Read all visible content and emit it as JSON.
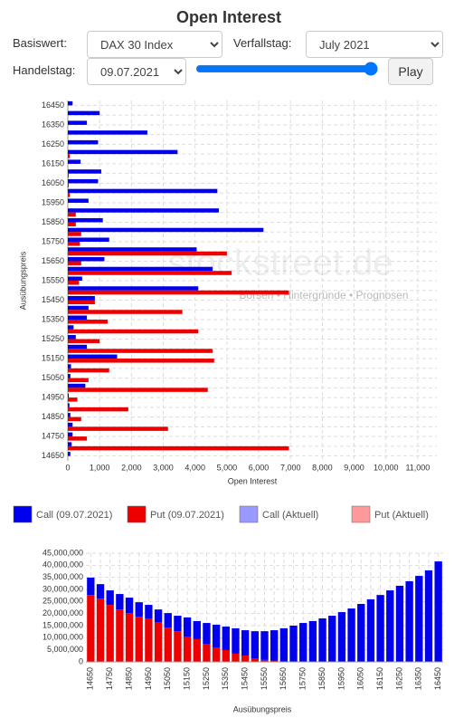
{
  "header": {
    "title": "Open Interest",
    "basiswert_label": "Basiswert:",
    "basiswert": "DAX 30 Index",
    "verfallstag_label": "Verfallstag:",
    "verfallstag": "July 2021",
    "handelstag_label": "Handelstag:",
    "handelstag": "09.07.2021",
    "play": "Play"
  },
  "chart_data": [
    {
      "type": "bar",
      "orientation": "horizontal",
      "xlabel": "Open Interest",
      "ylabel": "Ausübungspreis",
      "watermark": [
        "stockstreet.de",
        "Börsen • Hintergründe • Prognosen"
      ],
      "categories": [
        14650,
        null,
        14750,
        null,
        14850,
        null,
        14950,
        null,
        15050,
        null,
        15150,
        null,
        15250,
        null,
        15350,
        null,
        15450,
        null,
        15550,
        null,
        15650,
        null,
        15750,
        null,
        15850,
        null,
        15950,
        null,
        16050,
        null,
        16150,
        null,
        16250,
        null,
        16350,
        null,
        16450
      ],
      "series": [
        {
          "name": "Call (09.07.2021)",
          "color": "#0000ee",
          "values": [
            80,
            120,
            150,
            150,
            80,
            50,
            30,
            550,
            80,
            100,
            1550,
            600,
            250,
            180,
            600,
            650,
            850,
            4100,
            450,
            4550,
            1150,
            4050,
            1300,
            6150,
            1100,
            4750,
            650,
            4700,
            950,
            1050,
            400,
            3450,
            950,
            2500,
            600,
            1000,
            150
          ]
        },
        {
          "name": "Put (09.07.2021)",
          "color": "#ee0000",
          "values": [
            0,
            6950,
            600,
            3150,
            420,
            1900,
            300,
            4400,
            650,
            1300,
            4600,
            4550,
            1000,
            4100,
            1250,
            3600,
            850,
            6950,
            350,
            5150,
            420,
            5000,
            380,
            420,
            250,
            250,
            0,
            60,
            30,
            30,
            0,
            60,
            0,
            0,
            0,
            0,
            0
          ]
        }
      ],
      "extra_legend": [
        {
          "name": "Call (Aktuell)",
          "color": "#9999ff"
        },
        {
          "name": "Put (Aktuell)",
          "color": "#ff9999"
        }
      ],
      "xlim": [
        0,
        11600
      ],
      "xticks": [
        0,
        {
          "value": 1000,
          "label": "1,000"
        },
        {
          "value": 2000,
          "label": "2,000"
        },
        {
          "value": 3000,
          "label": "3,000"
        },
        {
          "value": 4000,
          "label": "4,000"
        },
        {
          "value": 5000,
          "label": "5,000"
        },
        {
          "value": 6000,
          "label": "6,000"
        },
        {
          "value": 7000,
          "label": "7,000"
        },
        {
          "value": 8000,
          "label": "8,000"
        },
        {
          "value": 9000,
          "label": "9,000"
        },
        {
          "value": 10000,
          "label": "10,000"
        },
        {
          "value": 11000,
          "label": "11,000"
        }
      ],
      "grid": true
    },
    {
      "type": "bar",
      "stacked": true,
      "xlabel": "Ausübungspreis",
      "categories": [
        14650,
        null,
        14750,
        null,
        14850,
        null,
        14950,
        null,
        15050,
        null,
        15150,
        null,
        15250,
        null,
        15350,
        null,
        15450,
        null,
        15550,
        null,
        15650,
        null,
        15750,
        null,
        15850,
        null,
        15950,
        null,
        16050,
        null,
        16150,
        null,
        16250,
        null,
        16350,
        null,
        16450
      ],
      "series": [
        {
          "color": "#ee0000",
          "values": [
            27700000,
            26200000,
            23600000,
            21700000,
            20200000,
            18700000,
            18000000,
            16500000,
            14200000,
            12700000,
            10500000,
            9400000,
            7500000,
            6000000,
            4900000,
            3400000,
            2600000,
            1500000,
            800000,
            400000,
            100000,
            0,
            0,
            0,
            0,
            0,
            0,
            0,
            0,
            0,
            0,
            0,
            0,
            0,
            0,
            0,
            0
          ]
        },
        {
          "color": "#0000ee",
          "values": [
            7200000,
            6000000,
            6000000,
            6400000,
            6400000,
            6000000,
            5600000,
            5200000,
            6000000,
            6400000,
            7900000,
            7500000,
            8600000,
            9400000,
            9700000,
            10500000,
            10500000,
            11200000,
            11900000,
            12700000,
            13800000,
            15000000,
            16100000,
            16900000,
            18000000,
            19100000,
            20600000,
            22100000,
            24000000,
            25900000,
            27700000,
            29600000,
            31500000,
            33400000,
            35600000,
            37900000,
            41600000
          ]
        }
      ],
      "ylim": [
        0,
        45000000
      ],
      "yticks": [
        0,
        {
          "value": 5000000,
          "label": "5,000,000"
        },
        {
          "value": 10000000,
          "label": "10,000,000"
        },
        {
          "value": 15000000,
          "label": "15,000,000"
        },
        {
          "value": 20000000,
          "label": "20,000,000"
        },
        {
          "value": 25000000,
          "label": "25,000,000"
        },
        {
          "value": 30000000,
          "label": "30,000,000"
        },
        {
          "value": 35000000,
          "label": "35,000,000"
        },
        {
          "value": 40000000,
          "label": "40,000,000"
        },
        {
          "value": 45000000,
          "label": "45,000,000"
        }
      ],
      "grid": true
    }
  ]
}
